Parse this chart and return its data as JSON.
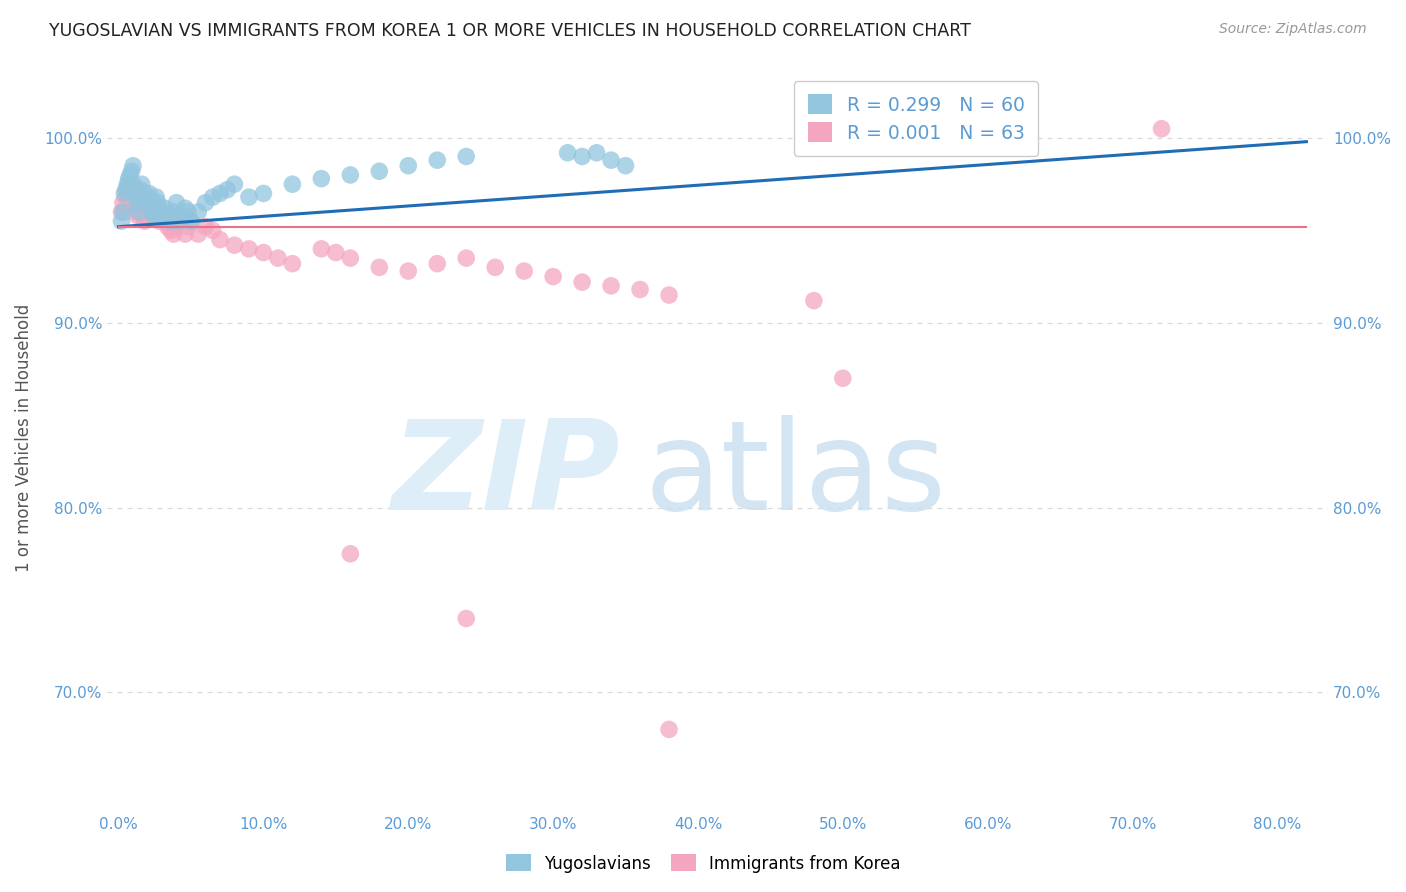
{
  "title": "YUGOSLAVIAN VS IMMIGRANTS FROM KOREA 1 OR MORE VEHICLES IN HOUSEHOLD CORRELATION CHART",
  "source": "Source: ZipAtlas.com",
  "ylabel": "1 or more Vehicles in Household",
  "ylim": [
    0.635,
    1.04
  ],
  "xlim": [
    -0.008,
    0.835
  ],
  "yticks": [
    0.7,
    0.8,
    0.9,
    1.0
  ],
  "ytick_labels": [
    "70.0%",
    "80.0%",
    "90.0%",
    "100.0%"
  ],
  "xticks": [
    0.0,
    0.1,
    0.2,
    0.3,
    0.4,
    0.5,
    0.6,
    0.7,
    0.8
  ],
  "xtick_labels": [
    "0.0%",
    "10.0%",
    "20.0%",
    "30.0%",
    "40.0%",
    "50.0%",
    "60.0%",
    "70.0%",
    "80.0%"
  ],
  "legend_R_blue": "R = 0.299",
  "legend_N_blue": "N = 60",
  "legend_R_pink": "R = 0.001",
  "legend_N_pink": "N = 63",
  "blue_color": "#92c5de",
  "pink_color": "#f4a6c0",
  "blue_line_color": "#1f6eb5",
  "pink_line_color": "#e8728a",
  "axis_color": "#5b9bd5",
  "grid_color": "#d8d8d8",
  "blue_scatter_x": [
    0.002,
    0.003,
    0.004,
    0.005,
    0.006,
    0.007,
    0.008,
    0.009,
    0.01,
    0.01,
    0.011,
    0.012,
    0.013,
    0.014,
    0.015,
    0.016,
    0.017,
    0.018,
    0.019,
    0.02,
    0.021,
    0.022,
    0.023,
    0.024,
    0.025,
    0.026,
    0.027,
    0.028,
    0.029,
    0.03,
    0.032,
    0.034,
    0.036,
    0.038,
    0.04,
    0.042,
    0.044,
    0.046,
    0.048,
    0.05,
    0.055,
    0.06,
    0.065,
    0.07,
    0.075,
    0.08,
    0.09,
    0.1,
    0.12,
    0.14,
    0.16,
    0.18,
    0.2,
    0.22,
    0.24,
    0.31,
    0.32,
    0.33,
    0.34,
    0.35
  ],
  "blue_scatter_y": [
    0.955,
    0.96,
    0.97,
    0.972,
    0.975,
    0.978,
    0.98,
    0.982,
    0.985,
    0.975,
    0.97,
    0.968,
    0.965,
    0.96,
    0.972,
    0.975,
    0.968,
    0.97,
    0.965,
    0.968,
    0.97,
    0.965,
    0.96,
    0.958,
    0.962,
    0.968,
    0.965,
    0.962,
    0.958,
    0.96,
    0.962,
    0.958,
    0.955,
    0.96,
    0.965,
    0.955,
    0.958,
    0.962,
    0.96,
    0.955,
    0.96,
    0.965,
    0.968,
    0.97,
    0.972,
    0.975,
    0.968,
    0.97,
    0.975,
    0.978,
    0.98,
    0.982,
    0.985,
    0.988,
    0.99,
    0.992,
    0.99,
    0.992,
    0.988,
    0.985
  ],
  "pink_scatter_x": [
    0.002,
    0.003,
    0.004,
    0.005,
    0.006,
    0.007,
    0.008,
    0.009,
    0.01,
    0.011,
    0.012,
    0.013,
    0.014,
    0.015,
    0.016,
    0.017,
    0.018,
    0.019,
    0.02,
    0.022,
    0.024,
    0.026,
    0.028,
    0.03,
    0.032,
    0.034,
    0.036,
    0.038,
    0.04,
    0.042,
    0.044,
    0.046,
    0.048,
    0.05,
    0.055,
    0.06,
    0.065,
    0.07,
    0.08,
    0.09,
    0.1,
    0.11,
    0.12,
    0.14,
    0.15,
    0.16,
    0.18,
    0.2,
    0.22,
    0.24,
    0.26,
    0.28,
    0.3,
    0.32,
    0.34,
    0.36,
    0.38,
    0.48,
    0.5,
    0.72,
    0.16,
    0.24,
    0.38
  ],
  "pink_scatter_y": [
    0.96,
    0.965,
    0.96,
    0.968,
    0.972,
    0.975,
    0.968,
    0.972,
    0.97,
    0.965,
    0.96,
    0.958,
    0.962,
    0.968,
    0.96,
    0.958,
    0.955,
    0.96,
    0.958,
    0.962,
    0.965,
    0.96,
    0.955,
    0.958,
    0.955,
    0.952,
    0.95,
    0.948,
    0.952,
    0.958,
    0.955,
    0.948,
    0.952,
    0.955,
    0.948,
    0.952,
    0.95,
    0.945,
    0.942,
    0.94,
    0.938,
    0.935,
    0.932,
    0.94,
    0.938,
    0.935,
    0.93,
    0.928,
    0.932,
    0.935,
    0.93,
    0.928,
    0.925,
    0.922,
    0.92,
    0.918,
    0.915,
    0.912,
    0.87,
    1.005,
    0.775,
    0.74,
    0.68
  ],
  "blue_trend_x": [
    0.0,
    0.82
  ],
  "blue_trend_y": [
    0.952,
    0.998
  ],
  "pink_trend_x": [
    0.0,
    0.82
  ],
  "pink_trend_y": [
    0.952,
    0.952
  ]
}
